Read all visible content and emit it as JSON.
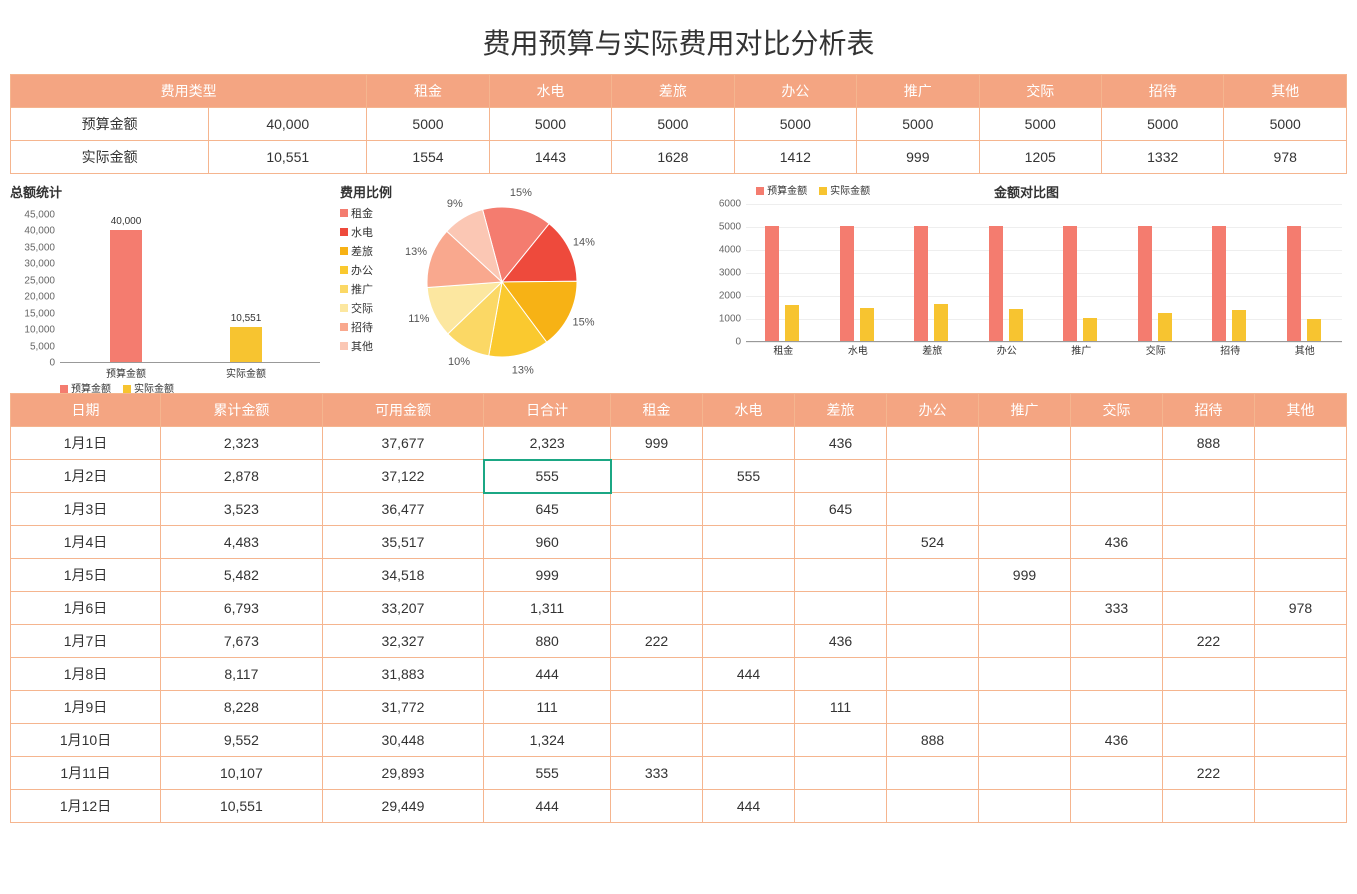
{
  "title": "费用预算与实际费用对比分析表",
  "colors": {
    "header_bg": "#f4a582",
    "header_fg": "#ffffff",
    "border": "#f5b58f",
    "budget": "#f47c6f",
    "actual": "#f7c430",
    "selected": "#1ba784"
  },
  "categories": [
    "租金",
    "水电",
    "差旅",
    "办公",
    "推广",
    "交际",
    "招待",
    "其他"
  ],
  "summary": {
    "type_label": "费用类型",
    "budget_label": "预算金额",
    "actual_label": "实际金额",
    "budget_total": "40,000",
    "actual_total": "10,551",
    "budget_row": [
      "5000",
      "5000",
      "5000",
      "5000",
      "5000",
      "5000",
      "5000",
      "5000"
    ],
    "actual_row": [
      "1554",
      "1443",
      "1628",
      "1412",
      "999",
      "1205",
      "1332",
      "978"
    ]
  },
  "total_chart": {
    "title": "总额统计",
    "type": "bar",
    "ylim": [
      0,
      45000
    ],
    "yticks": [
      "0",
      "5,000",
      "10,000",
      "15,000",
      "20,000",
      "25,000",
      "30,000",
      "35,000",
      "40,000",
      "45,000"
    ],
    "bars": [
      {
        "label": "预算金额",
        "value": 40000,
        "text": "40,000",
        "color": "#f47c6f"
      },
      {
        "label": "实际金额",
        "value": 10551,
        "text": "10,551",
        "color": "#f7c430"
      }
    ]
  },
  "pie_chart": {
    "title": "费用比例",
    "type": "pie",
    "slices": [
      {
        "label": "租金",
        "pct": 15,
        "color": "#f47c6f"
      },
      {
        "label": "水电",
        "pct": 14,
        "color": "#ee4a3c"
      },
      {
        "label": "差旅",
        "pct": 15,
        "color": "#f7b215"
      },
      {
        "label": "办公",
        "pct": 13,
        "color": "#fac92f"
      },
      {
        "label": "推广",
        "pct": 10,
        "color": "#fbd865"
      },
      {
        "label": "交际",
        "pct": 11,
        "color": "#fce7a0"
      },
      {
        "label": "招待",
        "pct": 13,
        "color": "#f9a88e"
      },
      {
        "label": "其他",
        "pct": 9,
        "color": "#fbc7b4"
      }
    ]
  },
  "grouped_chart": {
    "title": "金额对比图",
    "type": "grouped-bar",
    "ylim": [
      0,
      6000
    ],
    "yticks": [
      "0",
      "1000",
      "2000",
      "3000",
      "4000",
      "5000",
      "6000"
    ],
    "legend": [
      {
        "label": "预算金额",
        "color": "#f47c6f"
      },
      {
        "label": "实际金额",
        "color": "#f7c430"
      }
    ],
    "budget_values": [
      5000,
      5000,
      5000,
      5000,
      5000,
      5000,
      5000,
      5000
    ],
    "actual_values": [
      1554,
      1443,
      1628,
      1412,
      999,
      1205,
      1332,
      978
    ]
  },
  "detail_table": {
    "headers": [
      "日期",
      "累计金额",
      "可用金额",
      "日合计",
      "租金",
      "水电",
      "差旅",
      "办公",
      "推广",
      "交际",
      "招待",
      "其他"
    ],
    "rows": [
      [
        "1月1日",
        "2,323",
        "37,677",
        "2,323",
        "999",
        "",
        "436",
        "",
        "",
        "",
        "888",
        ""
      ],
      [
        "1月2日",
        "2,878",
        "37,122",
        "555",
        "",
        "555",
        "",
        "",
        "",
        "",
        "",
        ""
      ],
      [
        "1月3日",
        "3,523",
        "36,477",
        "645",
        "",
        "",
        "645",
        "",
        "",
        "",
        "",
        ""
      ],
      [
        "1月4日",
        "4,483",
        "35,517",
        "960",
        "",
        "",
        "",
        "524",
        "",
        "436",
        "",
        ""
      ],
      [
        "1月5日",
        "5,482",
        "34,518",
        "999",
        "",
        "",
        "",
        "",
        "999",
        "",
        "",
        ""
      ],
      [
        "1月6日",
        "6,793",
        "33,207",
        "1,311",
        "",
        "",
        "",
        "",
        "",
        "333",
        "",
        "978"
      ],
      [
        "1月7日",
        "7,673",
        "32,327",
        "880",
        "222",
        "",
        "436",
        "",
        "",
        "",
        "222",
        ""
      ],
      [
        "1月8日",
        "8,117",
        "31,883",
        "444",
        "",
        "444",
        "",
        "",
        "",
        "",
        "",
        ""
      ],
      [
        "1月9日",
        "8,228",
        "31,772",
        "111",
        "",
        "",
        "111",
        "",
        "",
        "",
        "",
        ""
      ],
      [
        "1月10日",
        "9,552",
        "30,448",
        "1,324",
        "",
        "",
        "",
        "888",
        "",
        "436",
        "",
        ""
      ],
      [
        "1月11日",
        "10,107",
        "29,893",
        "555",
        "333",
        "",
        "",
        "",
        "",
        "",
        "222",
        ""
      ],
      [
        "1月12日",
        "10,551",
        "29,449",
        "444",
        "",
        "444",
        "",
        "",
        "",
        "",
        "",
        ""
      ]
    ],
    "selected_cell": {
      "row": 1,
      "col": 3
    }
  }
}
